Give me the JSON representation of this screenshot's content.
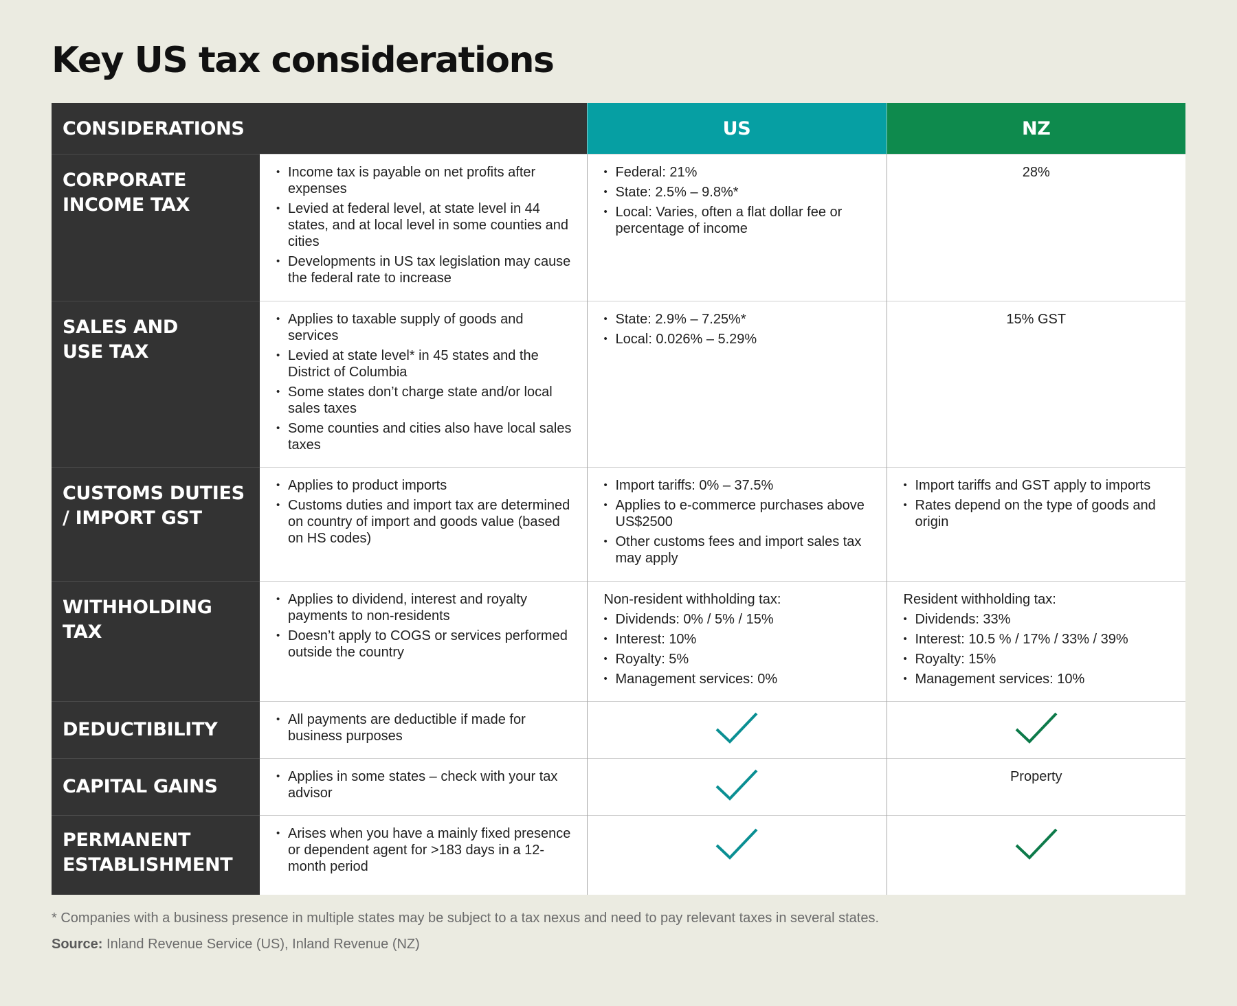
{
  "title": "Key US tax considerations",
  "colors": {
    "background": "#ebebe1",
    "label_bg": "#333333",
    "us_header": "#069fa3",
    "nz_header": "#0e8a4d",
    "us_check": "#0a8f93",
    "nz_check": "#0d7a4a"
  },
  "header": {
    "considerations": "CONSIDERATIONS",
    "us": "US",
    "nz": "NZ"
  },
  "rows": [
    {
      "label": [
        "CORPORATE",
        "INCOME TAX"
      ],
      "considerations": [
        "Income tax is payable on net profits after expenses",
        "Levied at federal level, at state level in 44 states, and at local level in some counties and cities",
        "Developments in US tax legislation may cause the federal rate to increase"
      ],
      "us_items": [
        "Federal: 21%",
        "State: 2.5% – 9.8%*",
        "Local: Varies, often a flat dollar fee or percentage of income"
      ],
      "nz_text": "28%"
    },
    {
      "label": [
        "SALES AND",
        "USE TAX"
      ],
      "considerations": [
        "Applies to taxable supply of goods and services",
        "Levied at state level* in 45 states and the District of Columbia",
        "Some states don’t charge state and/or local sales taxes",
        "Some counties and cities also have local sales taxes"
      ],
      "us_items": [
        "State: 2.9% – 7.25%*",
        "Local: 0.026% – 5.29%"
      ],
      "nz_text": "15% GST"
    },
    {
      "label": [
        "CUSTOMS DUTIES",
        "/ IMPORT GST"
      ],
      "considerations": [
        "Applies to product imports",
        "Customs duties and import tax are determined on country of import and goods value (based on HS codes)"
      ],
      "us_items": [
        "Import tariffs: 0% – 37.5%",
        "Applies to e-commerce purchases above US$2500",
        "Other customs fees and import sales tax may apply"
      ],
      "nz_items": [
        "Import tariffs and GST apply to imports",
        "Rates depend on the type of goods and origin"
      ]
    },
    {
      "label": [
        "WITHHOLDING",
        "TAX"
      ],
      "considerations": [
        "Applies to dividend, interest and royalty payments to non-residents",
        "Doesn’t apply to COGS or services performed outside the country"
      ],
      "us_lead": "Non-resident withholding tax:",
      "us_items": [
        "Dividends: 0% / 5% / 15%",
        "Interest: 10%",
        "Royalty: 5%",
        "Management services: 0%"
      ],
      "nz_lead": "Resident withholding tax:",
      "nz_items": [
        "Dividends: 33%",
        "Interest: 10.5 % / 17% / 33% / 39%",
        "Royalty: 15%",
        "Management services: 10%"
      ]
    },
    {
      "label": [
        "DEDUCTIBILITY"
      ],
      "considerations": [
        "All payments are deductible if made for business purposes"
      ],
      "us_check": "check-icon",
      "nz_check": "check-icon"
    },
    {
      "label": [
        "CAPITAL GAINS"
      ],
      "considerations": [
        "Applies in some states – check with your tax advisor"
      ],
      "us_check": "check-icon",
      "nz_text": "Property"
    },
    {
      "label": [
        "PERMANENT",
        "ESTABLISHMENT"
      ],
      "considerations": [
        "Arises when you have a mainly fixed presence or dependent agent for >183 days in a 12-month period"
      ],
      "us_check": "check-icon",
      "nz_check": "check-icon"
    }
  ],
  "footnote": "* Companies with a business presence in multiple states may be subject to a tax nexus and need to pay relevant taxes in several states.",
  "source": {
    "label": "Source:",
    "text": " Inland Revenue Service (US), Inland Revenue (NZ)"
  }
}
